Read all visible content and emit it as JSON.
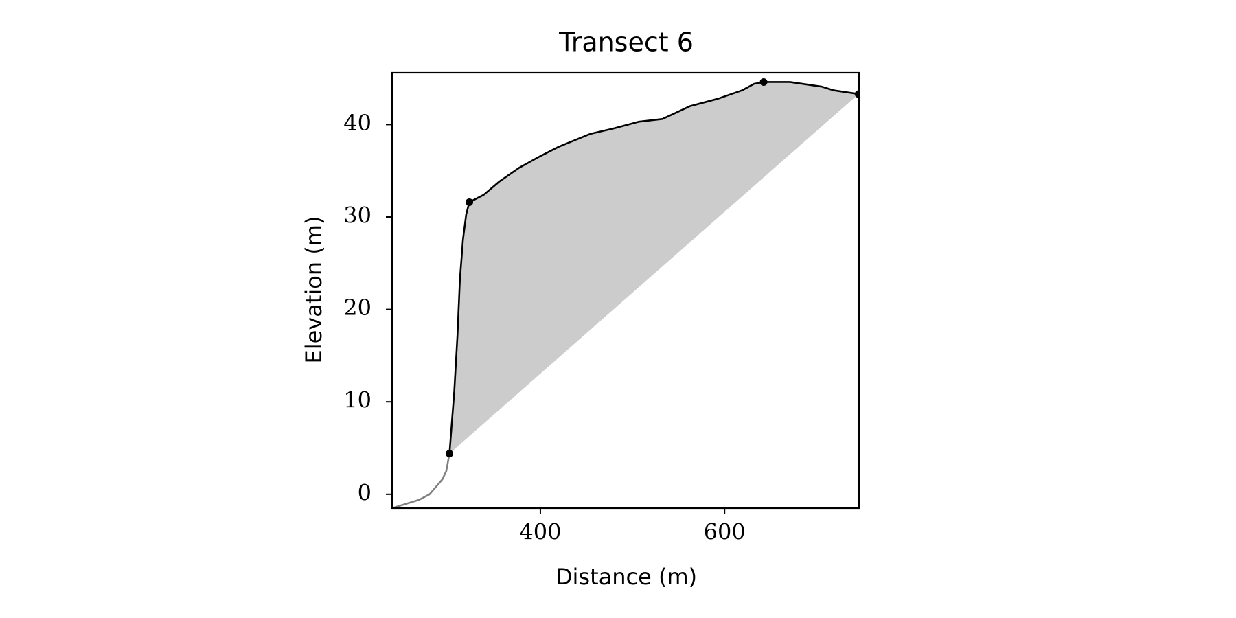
{
  "chart_data": {
    "type": "line",
    "title": "Transect 6",
    "xlabel": "Distance (m)",
    "ylabel": "Elevation (m)",
    "xlim": [
      239,
      746
    ],
    "ylim": [
      -1.5,
      45.6
    ],
    "xticks": [
      400,
      600
    ],
    "yticks": [
      0,
      10,
      20,
      30,
      40
    ],
    "series": [
      {
        "color": "#808080",
        "x": [
          239,
          255.4,
          268.4,
          279.7,
          286.6,
          293.5,
          297.8,
          301.3
        ],
        "values": [
          -1.5,
          -1.0,
          -0.6,
          0,
          0.8,
          1.6,
          2.5,
          4.4
        ]
      },
      {
        "color": "#000000",
        "fill": "#cccccc",
        "x": [
          301.3,
          306.5,
          310,
          312.6,
          316,
          319.5,
          322.9,
          338.5,
          355,
          376.6,
          398.3,
          420,
          454.5,
          480.5,
          506.5,
          532.5,
          562.8,
          593,
          619,
          632,
          642.4,
          671,
          705.6,
          718.6,
          745.5
        ],
        "values": [
          4.4,
          11.1,
          17.2,
          23.2,
          27.6,
          30.3,
          31.6,
          32.4,
          33.8,
          35.3,
          36.5,
          37.6,
          39.0,
          39.6,
          40.3,
          40.6,
          42.0,
          42.8,
          43.7,
          44.4,
          44.6,
          44.6,
          44.1,
          43.7,
          43.3
        ]
      }
    ],
    "markers": {
      "color": "#000000",
      "x": [
        301.3,
        322.9,
        642.4,
        745.5
      ],
      "values": [
        4.4,
        31.6,
        44.6,
        43.3
      ]
    }
  }
}
